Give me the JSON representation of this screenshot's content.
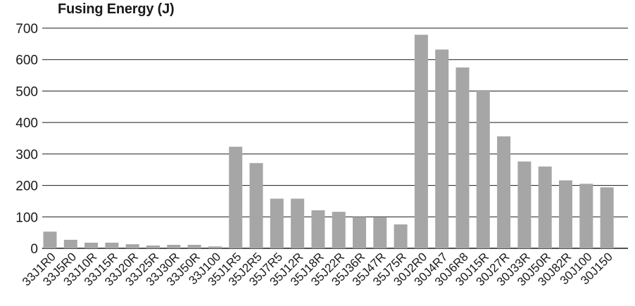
{
  "chart_data": {
    "type": "bar",
    "title": "Fusing Energy (J)",
    "xlabel": "",
    "ylabel": "",
    "ylim": [
      0,
      700
    ],
    "yticks": [
      0,
      100,
      200,
      300,
      400,
      500,
      600,
      700
    ],
    "grid": "horizontal",
    "categories": [
      "33J1R0",
      "33J5R0",
      "33J10R",
      "33J15R",
      "33J20R",
      "33J25R",
      "33J30R",
      "33J50R",
      "33J100",
      "35J1R5",
      "35J2R5",
      "35J7R5",
      "35J12R",
      "35J18R",
      "35J22R",
      "35J36R",
      "35J47R",
      "35J75R",
      "30J2R0",
      "30J4R7",
      "30J6R8",
      "30J15R",
      "30J27R",
      "30J33R",
      "30J50R",
      "30J82R",
      "30J100",
      "30J150"
    ],
    "values": [
      53,
      27,
      18,
      18,
      13,
      9,
      11,
      11,
      6,
      323,
      271,
      158,
      158,
      121,
      116,
      100,
      98,
      76,
      679,
      632,
      575,
      503,
      356,
      276,
      260,
      216,
      205,
      194
    ],
    "colors": {
      "bar": "#a6a6a6",
      "grid": "#1a1a1a",
      "axis": "#1a1a1a"
    }
  }
}
